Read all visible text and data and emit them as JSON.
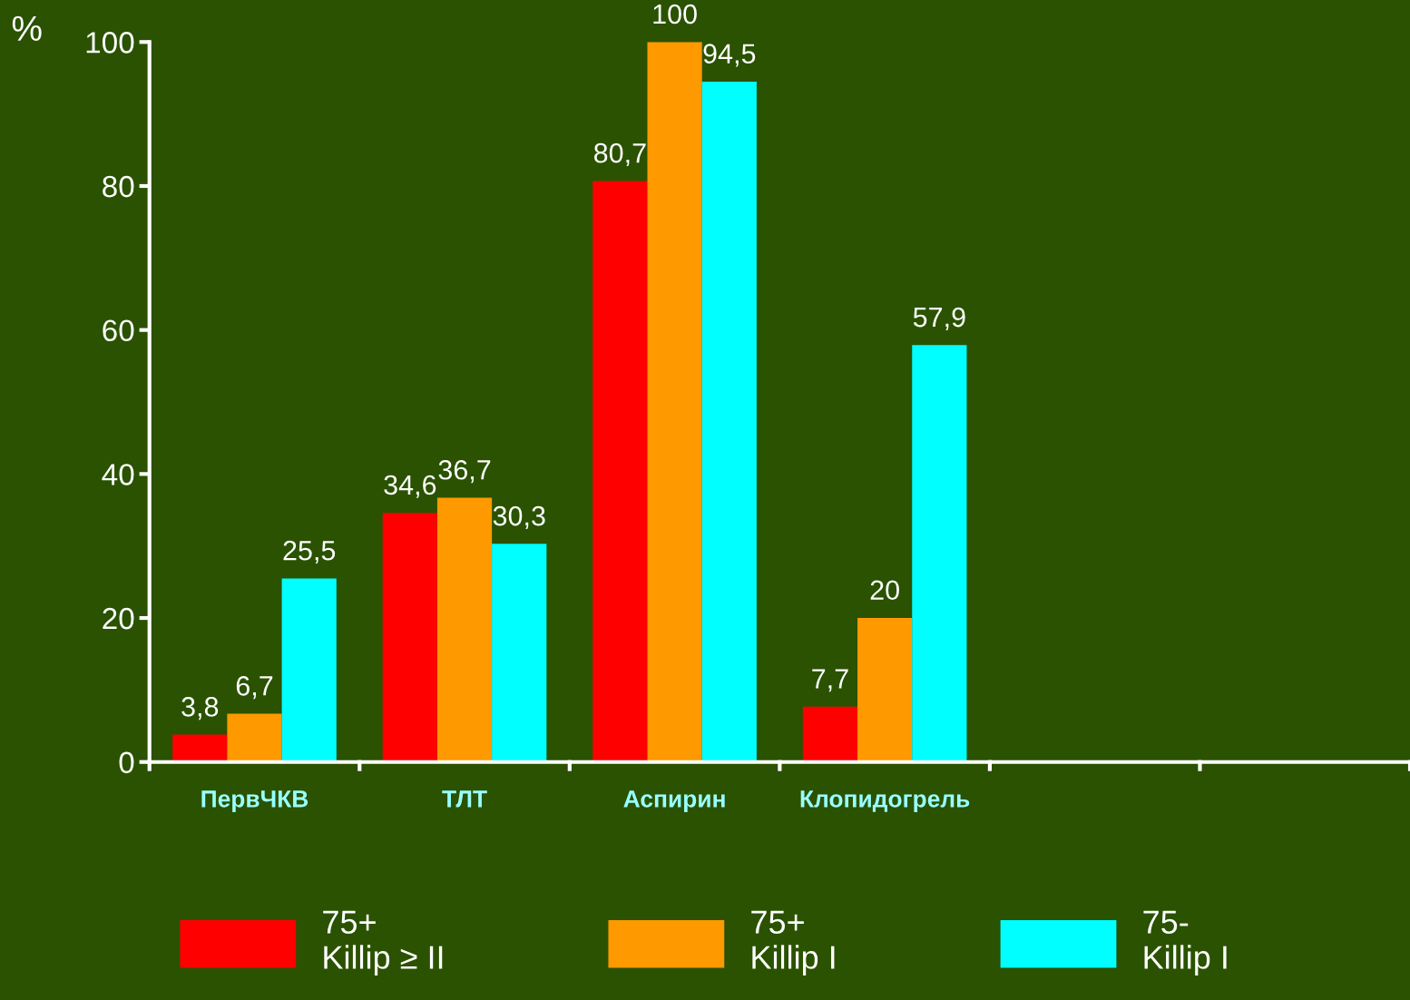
{
  "chart_data": {
    "type": "bar",
    "ylabel": "%",
    "categories": [
      "ПервЧКВ",
      "ТЛТ",
      "Аспирин",
      "Клопидогрель",
      null,
      null
    ],
    "series": [
      {
        "name": "75+\nKillip ≥ II",
        "color": "#ff0000",
        "values": [
          3.8,
          34.6,
          80.7,
          7.7,
          null,
          null
        ],
        "value_labels": [
          "3,8",
          "34,6",
          "80,7",
          "7,7",
          null,
          null
        ]
      },
      {
        "name": "75+\nKillip I",
        "color": "#ff9900",
        "values": [
          6.7,
          36.7,
          100,
          20,
          null,
          null
        ],
        "value_labels": [
          "6,7",
          "36,7",
          "100",
          "20",
          null,
          null
        ]
      },
      {
        "name": "75-\nKillip I",
        "color": "#00ffff",
        "values": [
          25.5,
          30.3,
          94.5,
          57.9,
          null,
          null
        ],
        "value_labels": [
          "25,5",
          "30,3",
          "94,5",
          "57,9",
          null,
          null
        ]
      }
    ],
    "ylim": [
      0,
      100
    ],
    "yticks": [
      0,
      20,
      40,
      60,
      80,
      100
    ],
    "grid": false,
    "legend": "bottom"
  }
}
